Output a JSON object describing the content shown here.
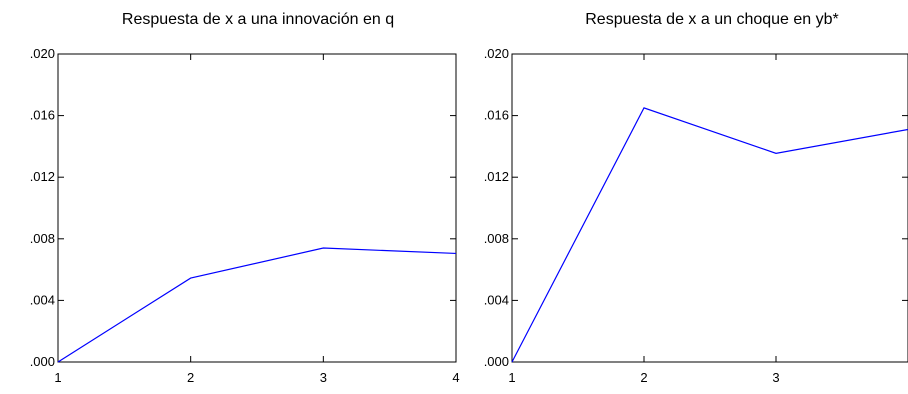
{
  "chart_data": [
    {
      "type": "line",
      "title": "Respuesta de x a una innovación en q",
      "x": [
        1,
        2,
        3,
        4
      ],
      "x_tick_labels": [
        "1",
        "2",
        "3",
        "4"
      ],
      "y_tick_labels": [
        ".000",
        ".004",
        ".008",
        ".012",
        ".016",
        ".020"
      ],
      "ylim": [
        0,
        0.02
      ],
      "xlim": [
        1,
        4
      ],
      "grid": false,
      "series": [
        {
          "values": [
            0.0,
            0.00545,
            0.0074,
            0.00705
          ],
          "color": "#0000ff"
        }
      ]
    },
    {
      "type": "line",
      "title": "Respuesta de x a un choque en yb*",
      "x": [
        1,
        2,
        3,
        4
      ],
      "x_tick_labels": [
        "1",
        "2",
        "3",
        ""
      ],
      "y_tick_labels": [
        ".000",
        ".004",
        ".008",
        ".012",
        ".016",
        ".020"
      ],
      "ylim": [
        0,
        0.02
      ],
      "xlim": [
        1,
        4
      ],
      "grid": false,
      "series": [
        {
          "values": [
            0.0,
            0.0165,
            0.01355,
            0.0151
          ],
          "color": "#0000ff"
        }
      ]
    }
  ]
}
